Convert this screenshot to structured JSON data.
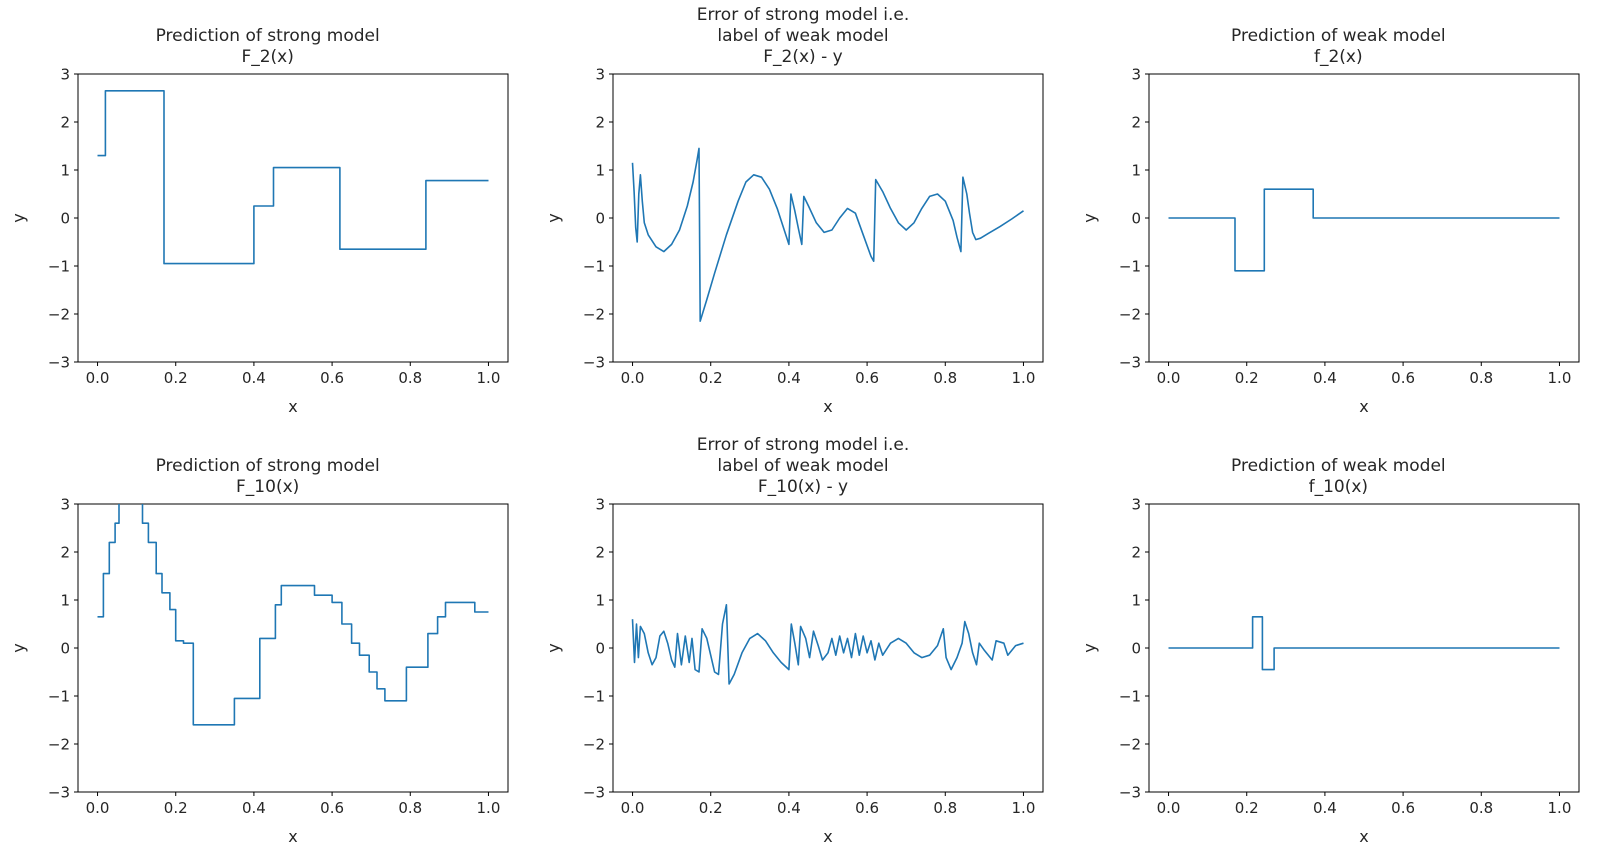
{
  "figure": {
    "background": "#ffffff",
    "line_color": "#1f77b4",
    "text_color": "#262626"
  },
  "chart_data": [
    {
      "id": "strong-model-F2",
      "type": "line",
      "subtype": "step",
      "title": "Prediction of strong model\nF_2(x)",
      "xlabel": "x",
      "ylabel": "y",
      "xlim": [
        -0.05,
        1.05
      ],
      "ylim": [
        -3,
        3
      ],
      "xticks": [
        0.0,
        0.2,
        0.4,
        0.6,
        0.8,
        1.0
      ],
      "xtick_labels": [
        "0.0",
        "0.2",
        "0.4",
        "0.6",
        "0.8",
        "1.0"
      ],
      "yticks": [
        -3,
        -2,
        -1,
        0,
        1,
        2,
        3
      ],
      "ytick_labels": [
        "−3",
        "−2",
        "−1",
        "0",
        "1",
        "2",
        "3"
      ],
      "grid": false,
      "legend": "none",
      "series": [
        {
          "name": "F_2(x)",
          "steps": [
            [
              0.0,
              1.3
            ],
            [
              0.02,
              2.65
            ],
            [
              0.17,
              -0.95
            ],
            [
              0.4,
              0.25
            ],
            [
              0.45,
              1.05
            ],
            [
              0.62,
              -0.65
            ],
            [
              0.84,
              0.78
            ]
          ],
          "end": 1.0
        }
      ]
    },
    {
      "id": "error-F2",
      "type": "line",
      "subtype": "curve",
      "title": "Error of strong model i.e.\nlabel of weak model\nF_2(x) - y",
      "xlabel": "x",
      "ylabel": "y",
      "xlim": [
        -0.05,
        1.05
      ],
      "ylim": [
        -3,
        3
      ],
      "xticks": [
        0.0,
        0.2,
        0.4,
        0.6,
        0.8,
        1.0
      ],
      "xtick_labels": [
        "0.0",
        "0.2",
        "0.4",
        "0.6",
        "0.8",
        "1.0"
      ],
      "yticks": [
        -3,
        -2,
        -1,
        0,
        1,
        2,
        3
      ],
      "ytick_labels": [
        "−3",
        "−2",
        "−1",
        "0",
        "1",
        "2",
        "3"
      ],
      "grid": false,
      "legend": "none",
      "series": [
        {
          "name": "F_2(x) - y",
          "points": [
            [
              0.0,
              1.15
            ],
            [
              0.004,
              0.55
            ],
            [
              0.008,
              -0.2
            ],
            [
              0.012,
              -0.5
            ],
            [
              0.016,
              0.5
            ],
            [
              0.02,
              0.9
            ],
            [
              0.025,
              0.35
            ],
            [
              0.03,
              -0.1
            ],
            [
              0.04,
              -0.35
            ],
            [
              0.06,
              -0.6
            ],
            [
              0.08,
              -0.7
            ],
            [
              0.1,
              -0.55
            ],
            [
              0.12,
              -0.25
            ],
            [
              0.14,
              0.25
            ],
            [
              0.155,
              0.75
            ],
            [
              0.165,
              1.2
            ],
            [
              0.17,
              1.45
            ],
            [
              0.173,
              -2.15
            ],
            [
              0.19,
              -1.7
            ],
            [
              0.21,
              -1.15
            ],
            [
              0.24,
              -0.35
            ],
            [
              0.27,
              0.35
            ],
            [
              0.29,
              0.75
            ],
            [
              0.31,
              0.9
            ],
            [
              0.33,
              0.85
            ],
            [
              0.35,
              0.6
            ],
            [
              0.37,
              0.2
            ],
            [
              0.39,
              -0.3
            ],
            [
              0.4,
              -0.55
            ],
            [
              0.405,
              0.5
            ],
            [
              0.415,
              0.15
            ],
            [
              0.425,
              -0.25
            ],
            [
              0.433,
              -0.55
            ],
            [
              0.438,
              0.45
            ],
            [
              0.45,
              0.25
            ],
            [
              0.47,
              -0.1
            ],
            [
              0.49,
              -0.3
            ],
            [
              0.51,
              -0.25
            ],
            [
              0.53,
              0.0
            ],
            [
              0.55,
              0.2
            ],
            [
              0.57,
              0.1
            ],
            [
              0.59,
              -0.35
            ],
            [
              0.61,
              -0.8
            ],
            [
              0.617,
              -0.9
            ],
            [
              0.622,
              0.8
            ],
            [
              0.64,
              0.55
            ],
            [
              0.66,
              0.2
            ],
            [
              0.68,
              -0.1
            ],
            [
              0.7,
              -0.25
            ],
            [
              0.72,
              -0.1
            ],
            [
              0.74,
              0.2
            ],
            [
              0.76,
              0.45
            ],
            [
              0.78,
              0.5
            ],
            [
              0.8,
              0.35
            ],
            [
              0.82,
              -0.05
            ],
            [
              0.83,
              -0.4
            ],
            [
              0.84,
              -0.7
            ],
            [
              0.845,
              0.85
            ],
            [
              0.855,
              0.5
            ],
            [
              0.862,
              0.1
            ],
            [
              0.87,
              -0.3
            ],
            [
              0.878,
              -0.45
            ],
            [
              0.89,
              -0.42
            ],
            [
              0.91,
              -0.32
            ],
            [
              0.94,
              -0.18
            ],
            [
              0.97,
              -0.02
            ],
            [
              1.0,
              0.15
            ]
          ]
        }
      ]
    },
    {
      "id": "weak-model-f2",
      "type": "line",
      "subtype": "step",
      "title": "Prediction of weak model\nf_2(x)",
      "xlabel": "x",
      "ylabel": "y",
      "xlim": [
        -0.05,
        1.05
      ],
      "ylim": [
        -3,
        3
      ],
      "xticks": [
        0.0,
        0.2,
        0.4,
        0.6,
        0.8,
        1.0
      ],
      "xtick_labels": [
        "0.0",
        "0.2",
        "0.4",
        "0.6",
        "0.8",
        "1.0"
      ],
      "yticks": [
        -3,
        -2,
        -1,
        0,
        1,
        2,
        3
      ],
      "ytick_labels": [
        "−3",
        "−2",
        "−1",
        "0",
        "1",
        "2",
        "3"
      ],
      "grid": false,
      "legend": "none",
      "series": [
        {
          "name": "f_2(x)",
          "steps": [
            [
              0.0,
              0.0
            ],
            [
              0.17,
              -1.1
            ],
            [
              0.245,
              0.6
            ],
            [
              0.37,
              0.0
            ]
          ],
          "end": 1.0
        }
      ]
    },
    {
      "id": "strong-model-F10",
      "type": "line",
      "subtype": "step",
      "title": "Prediction of strong model\nF_10(x)",
      "xlabel": "x",
      "ylabel": "y",
      "xlim": [
        -0.05,
        1.05
      ],
      "ylim": [
        -3,
        3
      ],
      "xticks": [
        0.0,
        0.2,
        0.4,
        0.6,
        0.8,
        1.0
      ],
      "xtick_labels": [
        "0.0",
        "0.2",
        "0.4",
        "0.6",
        "0.8",
        "1.0"
      ],
      "yticks": [
        -3,
        -2,
        -1,
        0,
        1,
        2,
        3
      ],
      "ytick_labels": [
        "−3",
        "−2",
        "−1",
        "0",
        "1",
        "2",
        "3"
      ],
      "grid": false,
      "legend": "none",
      "series": [
        {
          "name": "F_10(x)",
          "steps": [
            [
              0.0,
              0.65
            ],
            [
              0.015,
              1.55
            ],
            [
              0.03,
              2.2
            ],
            [
              0.045,
              2.6
            ],
            [
              0.055,
              3.3
            ],
            [
              0.115,
              2.6
            ],
            [
              0.13,
              2.2
            ],
            [
              0.15,
              1.55
            ],
            [
              0.165,
              1.15
            ],
            [
              0.185,
              0.8
            ],
            [
              0.2,
              0.15
            ],
            [
              0.22,
              0.1
            ],
            [
              0.245,
              -1.6
            ],
            [
              0.35,
              -1.05
            ],
            [
              0.415,
              0.2
            ],
            [
              0.455,
              0.9
            ],
            [
              0.47,
              1.3
            ],
            [
              0.555,
              1.1
            ],
            [
              0.6,
              0.95
            ],
            [
              0.625,
              0.5
            ],
            [
              0.65,
              0.1
            ],
            [
              0.67,
              -0.15
            ],
            [
              0.695,
              -0.5
            ],
            [
              0.715,
              -0.85
            ],
            [
              0.735,
              -1.1
            ],
            [
              0.79,
              -0.4
            ],
            [
              0.845,
              0.3
            ],
            [
              0.87,
              0.65
            ],
            [
              0.89,
              0.95
            ],
            [
              0.965,
              0.75
            ]
          ],
          "end": 1.0
        }
      ]
    },
    {
      "id": "error-F10",
      "type": "line",
      "subtype": "curve",
      "title": "Error of strong model i.e.\nlabel of weak model\nF_10(x) - y",
      "xlabel": "x",
      "ylabel": "y",
      "xlim": [
        -0.05,
        1.05
      ],
      "ylim": [
        -3,
        3
      ],
      "xticks": [
        0.0,
        0.2,
        0.4,
        0.6,
        0.8,
        1.0
      ],
      "xtick_labels": [
        "0.0",
        "0.2",
        "0.4",
        "0.6",
        "0.8",
        "1.0"
      ],
      "yticks": [
        -3,
        -2,
        -1,
        0,
        1,
        2,
        3
      ],
      "ytick_labels": [
        "−3",
        "−2",
        "−1",
        "0",
        "1",
        "2",
        "3"
      ],
      "grid": false,
      "legend": "none",
      "series": [
        {
          "name": "F_10(x) - y",
          "points": [
            [
              0.0,
              0.6
            ],
            [
              0.005,
              -0.3
            ],
            [
              0.01,
              0.5
            ],
            [
              0.015,
              -0.2
            ],
            [
              0.02,
              0.45
            ],
            [
              0.03,
              0.3
            ],
            [
              0.04,
              -0.1
            ],
            [
              0.05,
              -0.35
            ],
            [
              0.06,
              -0.2
            ],
            [
              0.07,
              0.25
            ],
            [
              0.08,
              0.35
            ],
            [
              0.09,
              0.1
            ],
            [
              0.1,
              -0.25
            ],
            [
              0.108,
              -0.4
            ],
            [
              0.115,
              0.3
            ],
            [
              0.125,
              -0.35
            ],
            [
              0.135,
              0.25
            ],
            [
              0.145,
              -0.3
            ],
            [
              0.152,
              0.2
            ],
            [
              0.16,
              -0.45
            ],
            [
              0.17,
              -0.5
            ],
            [
              0.178,
              0.4
            ],
            [
              0.19,
              0.2
            ],
            [
              0.2,
              -0.15
            ],
            [
              0.21,
              -0.5
            ],
            [
              0.22,
              -0.55
            ],
            [
              0.23,
              0.5
            ],
            [
              0.24,
              0.9
            ],
            [
              0.247,
              -0.75
            ],
            [
              0.26,
              -0.55
            ],
            [
              0.28,
              -0.1
            ],
            [
              0.3,
              0.2
            ],
            [
              0.32,
              0.3
            ],
            [
              0.34,
              0.15
            ],
            [
              0.36,
              -0.1
            ],
            [
              0.38,
              -0.3
            ],
            [
              0.4,
              -0.45
            ],
            [
              0.406,
              0.5
            ],
            [
              0.415,
              0.1
            ],
            [
              0.424,
              -0.35
            ],
            [
              0.43,
              0.45
            ],
            [
              0.443,
              0.2
            ],
            [
              0.453,
              -0.2
            ],
            [
              0.463,
              0.35
            ],
            [
              0.475,
              0.05
            ],
            [
              0.486,
              -0.25
            ],
            [
              0.5,
              -0.1
            ],
            [
              0.51,
              0.2
            ],
            [
              0.52,
              -0.15
            ],
            [
              0.53,
              0.25
            ],
            [
              0.54,
              -0.1
            ],
            [
              0.55,
              0.2
            ],
            [
              0.56,
              -0.2
            ],
            [
              0.57,
              0.3
            ],
            [
              0.58,
              -0.15
            ],
            [
              0.59,
              0.25
            ],
            [
              0.6,
              -0.1
            ],
            [
              0.61,
              0.15
            ],
            [
              0.62,
              -0.25
            ],
            [
              0.63,
              0.1
            ],
            [
              0.64,
              -0.15
            ],
            [
              0.66,
              0.1
            ],
            [
              0.68,
              0.2
            ],
            [
              0.7,
              0.1
            ],
            [
              0.72,
              -0.1
            ],
            [
              0.74,
              -0.2
            ],
            [
              0.76,
              -0.15
            ],
            [
              0.78,
              0.05
            ],
            [
              0.795,
              0.4
            ],
            [
              0.802,
              -0.2
            ],
            [
              0.815,
              -0.45
            ],
            [
              0.83,
              -0.2
            ],
            [
              0.843,
              0.1
            ],
            [
              0.85,
              0.55
            ],
            [
              0.86,
              0.3
            ],
            [
              0.87,
              -0.1
            ],
            [
              0.88,
              -0.35
            ],
            [
              0.887,
              0.1
            ],
            [
              0.9,
              -0.05
            ],
            [
              0.92,
              -0.25
            ],
            [
              0.93,
              0.15
            ],
            [
              0.95,
              0.1
            ],
            [
              0.96,
              -0.15
            ],
            [
              0.98,
              0.05
            ],
            [
              1.0,
              0.1
            ]
          ]
        }
      ]
    },
    {
      "id": "weak-model-f10",
      "type": "line",
      "subtype": "step",
      "title": "Prediction of weak model\nf_10(x)",
      "xlabel": "x",
      "ylabel": "y",
      "xlim": [
        -0.05,
        1.05
      ],
      "ylim": [
        -3,
        3
      ],
      "xticks": [
        0.0,
        0.2,
        0.4,
        0.6,
        0.8,
        1.0
      ],
      "xtick_labels": [
        "0.0",
        "0.2",
        "0.4",
        "0.6",
        "0.8",
        "1.0"
      ],
      "yticks": [
        -3,
        -2,
        -1,
        0,
        1,
        2,
        3
      ],
      "ytick_labels": [
        "−3",
        "−2",
        "−1",
        "0",
        "1",
        "2",
        "3"
      ],
      "grid": false,
      "legend": "none",
      "series": [
        {
          "name": "f_10(x)",
          "steps": [
            [
              0.0,
              0.0
            ],
            [
              0.215,
              0.65
            ],
            [
              0.24,
              -0.45
            ],
            [
              0.27,
              0.0
            ]
          ],
          "end": 1.0
        }
      ]
    }
  ]
}
